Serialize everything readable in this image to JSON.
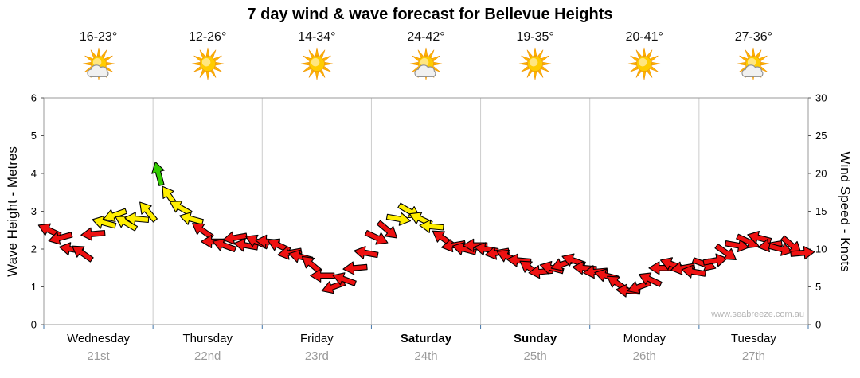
{
  "chart_data": {
    "type": "scatter",
    "title": "7 day wind & wave forecast for Bellevue Heights",
    "watermark": "www.seabreeze.com.au",
    "left_axis": {
      "label": "Wave Height - Metres",
      "min": 0,
      "max": 6,
      "ticks": [
        0,
        1,
        2,
        3,
        4,
        5,
        6
      ]
    },
    "right_axis": {
      "label": "Wind Speed - Knots",
      "min": 0,
      "max": 30,
      "ticks": [
        0,
        5,
        10,
        15,
        20,
        25,
        30
      ]
    },
    "days": [
      {
        "name": "Wednesday",
        "date": "21st",
        "temp": "16-23°",
        "icon": "sun-cloud",
        "bold": false
      },
      {
        "name": "Thursday",
        "date": "22nd",
        "temp": "12-26°",
        "icon": "sun",
        "bold": false
      },
      {
        "name": "Friday",
        "date": "23rd",
        "temp": "14-34°",
        "icon": "sun",
        "bold": false
      },
      {
        "name": "Saturday",
        "date": "24th",
        "temp": "24-42°",
        "icon": "sun-cloud",
        "bold": true
      },
      {
        "name": "Sunday",
        "date": "25th",
        "temp": "19-35°",
        "icon": "sun",
        "bold": true
      },
      {
        "name": "Monday",
        "date": "26th",
        "temp": "20-41°",
        "icon": "sun",
        "bold": false
      },
      {
        "name": "Tuesday",
        "date": "27th",
        "temp": "27-36°",
        "icon": "sun-cloud",
        "bold": false
      }
    ],
    "points_per_day": 10,
    "series": [
      {
        "name": "Wind Speed",
        "units": "knots",
        "values": [
          12.5,
          11.5,
          10,
          9.5,
          12,
          13.5,
          14.5,
          13.5,
          14,
          15,
          20,
          17,
          15.5,
          14,
          12.5,
          11,
          10.5,
          11.5,
          10.5,
          11,
          11,
          10.5,
          9.5,
          9,
          8,
          6.5,
          5,
          6,
          7.5,
          9.5,
          11.5,
          12.5,
          14,
          15,
          14,
          13,
          11.5,
          10.5,
          10,
          10.5,
          10,
          9.5,
          9,
          8.5,
          7.5,
          7,
          7.5,
          8,
          8.5,
          7.5,
          7,
          6.5,
          5.5,
          4.5,
          5,
          6,
          7.5,
          8,
          7.5,
          7,
          8,
          8.5,
          9.5,
          10.5,
          11,
          11.5,
          10.5,
          10,
          10.5,
          9.5
        ],
        "directions_deg": [
          205,
          165,
          190,
          215,
          175,
          195,
          160,
          210,
          185,
          230,
          255,
          235,
          210,
          195,
          215,
          180,
          200,
          170,
          190,
          205,
          185,
          205,
          170,
          195,
          220,
          180,
          160,
          200,
          175,
          190,
          25,
          40,
          10,
          30,
          205,
          185,
          215,
          170,
          195,
          180,
          190,
          170,
          205,
          185,
          215,
          175,
          195,
          160,
          200,
          185,
          175,
          195,
          215,
          185,
          160,
          205,
          180,
          200,
          170,
          190,
          20,
          350,
          35,
          10,
          25,
          195,
          170,
          15,
          40,
          355
        ]
      }
    ],
    "color_rules": {
      "green_min_knots": 18,
      "yellow_min_knots": 13,
      "colors": {
        "green": "#33cc00",
        "yellow": "#ffee00",
        "red": "#ee1111",
        "outline": "#000000"
      }
    },
    "grid": {
      "vertical_day_lines": true,
      "horizontal_lines": false
    }
  }
}
